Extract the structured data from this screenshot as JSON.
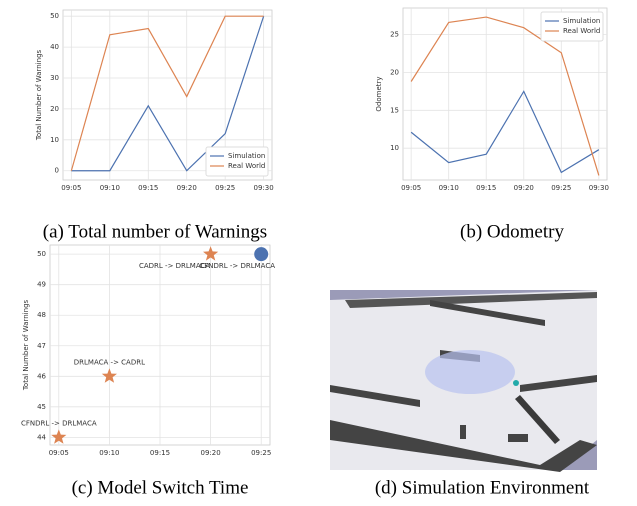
{
  "chart_data": [
    {
      "type": "line",
      "caption": "(a) Total number of Warnings",
      "ylabel": "Total Number of Warnings",
      "categories": [
        "09:05",
        "09:10",
        "09:15",
        "09:20",
        "09:25",
        "09:30"
      ],
      "series": [
        {
          "name": "Simulation",
          "color": "#4c72b0",
          "values": [
            0,
            0,
            21,
            0,
            12,
            50
          ]
        },
        {
          "name": "Real World",
          "color": "#dd8452",
          "values": [
            0,
            44,
            46,
            24,
            50,
            50
          ]
        }
      ],
      "ylim": [
        -3,
        52
      ],
      "yticks": [
        0,
        10,
        20,
        30,
        40,
        50
      ],
      "grid": true,
      "legend": "lower right"
    },
    {
      "type": "line",
      "caption": "(b) Odometry",
      "ylabel": "Odometry",
      "categories": [
        "09:05",
        "09:10",
        "09:15",
        "09:20",
        "09:25",
        "09:30"
      ],
      "series": [
        {
          "name": "Simulation",
          "color": "#4c72b0",
          "values": [
            12.1,
            8.1,
            9.2,
            17.5,
            6.8,
            9.8
          ]
        },
        {
          "name": "Real World",
          "color": "#dd8452",
          "values": [
            18.8,
            26.6,
            27.3,
            25.9,
            22.6,
            6.4
          ]
        }
      ],
      "ylim": [
        5.8,
        28.5
      ],
      "yticks": [
        10,
        15,
        20,
        25
      ],
      "grid": true,
      "legend": "upper right"
    },
    {
      "type": "scatter",
      "caption": "(c) Model Switch Time",
      "ylabel": "Total Number of Warnings",
      "categories": [
        "09:05",
        "09:10",
        "09:15",
        "09:20",
        "09:25"
      ],
      "points": [
        {
          "x": "09:05",
          "y": 44,
          "label": "CFNDRL -> DRLMACA",
          "marker": "star",
          "color": "#dd8452"
        },
        {
          "x": "09:10",
          "y": 46,
          "label": "DRLMACA -> CADRL",
          "marker": "star",
          "color": "#dd8452"
        },
        {
          "x": "09:20",
          "y": 50,
          "label": "CADRL -> DRLMACA",
          "marker": "star",
          "color": "#dd8452"
        },
        {
          "x": "09:25",
          "y": 50,
          "label": "CFNDRL -> DRLMACA",
          "marker": "circle",
          "color": "#4c72b0"
        }
      ],
      "ylim": [
        43.75,
        50.3
      ],
      "yticks": [
        44,
        45,
        46,
        47,
        48,
        49,
        50
      ],
      "grid": true
    }
  ],
  "image_panel": {
    "caption": "(d) Simulation Environment"
  }
}
